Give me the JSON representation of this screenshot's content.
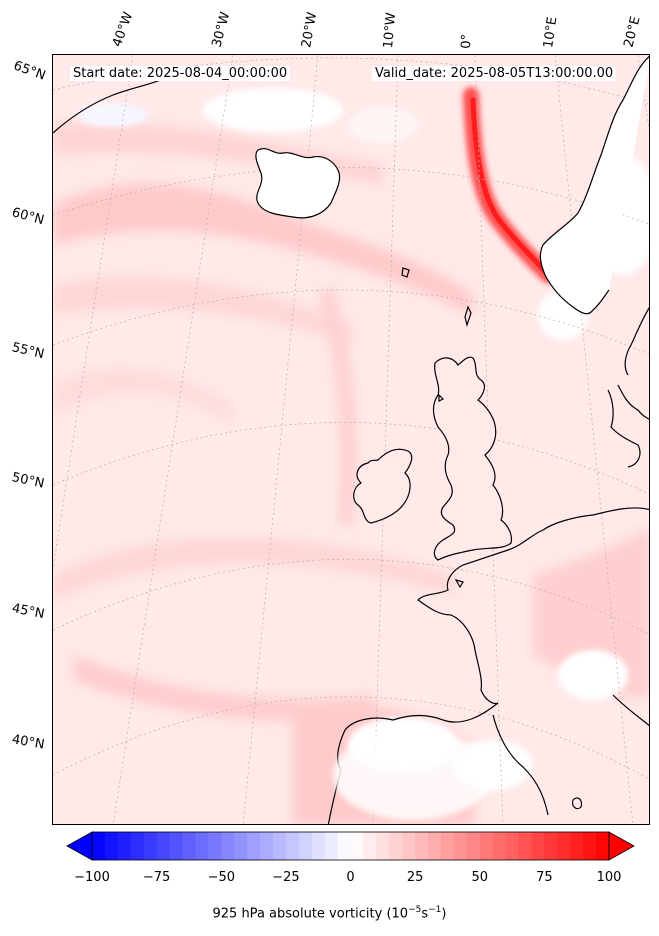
{
  "header": {
    "start_date": "Start date: 2025-08-04_00:00:00",
    "valid_date": "Valid_date: 2025-08-05T13:00:00.00"
  },
  "longitude_labels": [
    "40°W",
    "30°W",
    "20°W",
    "10°W",
    "0°",
    "10°E",
    "20°E"
  ],
  "latitude_labels": [
    "65°N",
    "60°N",
    "55°N",
    "50°N",
    "45°N",
    "40°N"
  ],
  "colorbar": {
    "ticks": [
      "−100",
      "−75",
      "−50",
      "−25",
      "0",
      "25",
      "50",
      "75",
      "100"
    ],
    "label_text": "925 hPa absolute vorticity (10",
    "label_exp1": "−5",
    "label_mid": "s",
    "label_exp2": "−1",
    "label_end": ")",
    "vmin": -100,
    "vmax": 100,
    "colormap": "bwr",
    "extend": "both"
  },
  "colors": {
    "background_field": "#ffeaea",
    "coastline": "#000000",
    "land_high": "#ffffff",
    "strong_positive": "#ff2020",
    "gridline": "#b0b0b0"
  }
}
